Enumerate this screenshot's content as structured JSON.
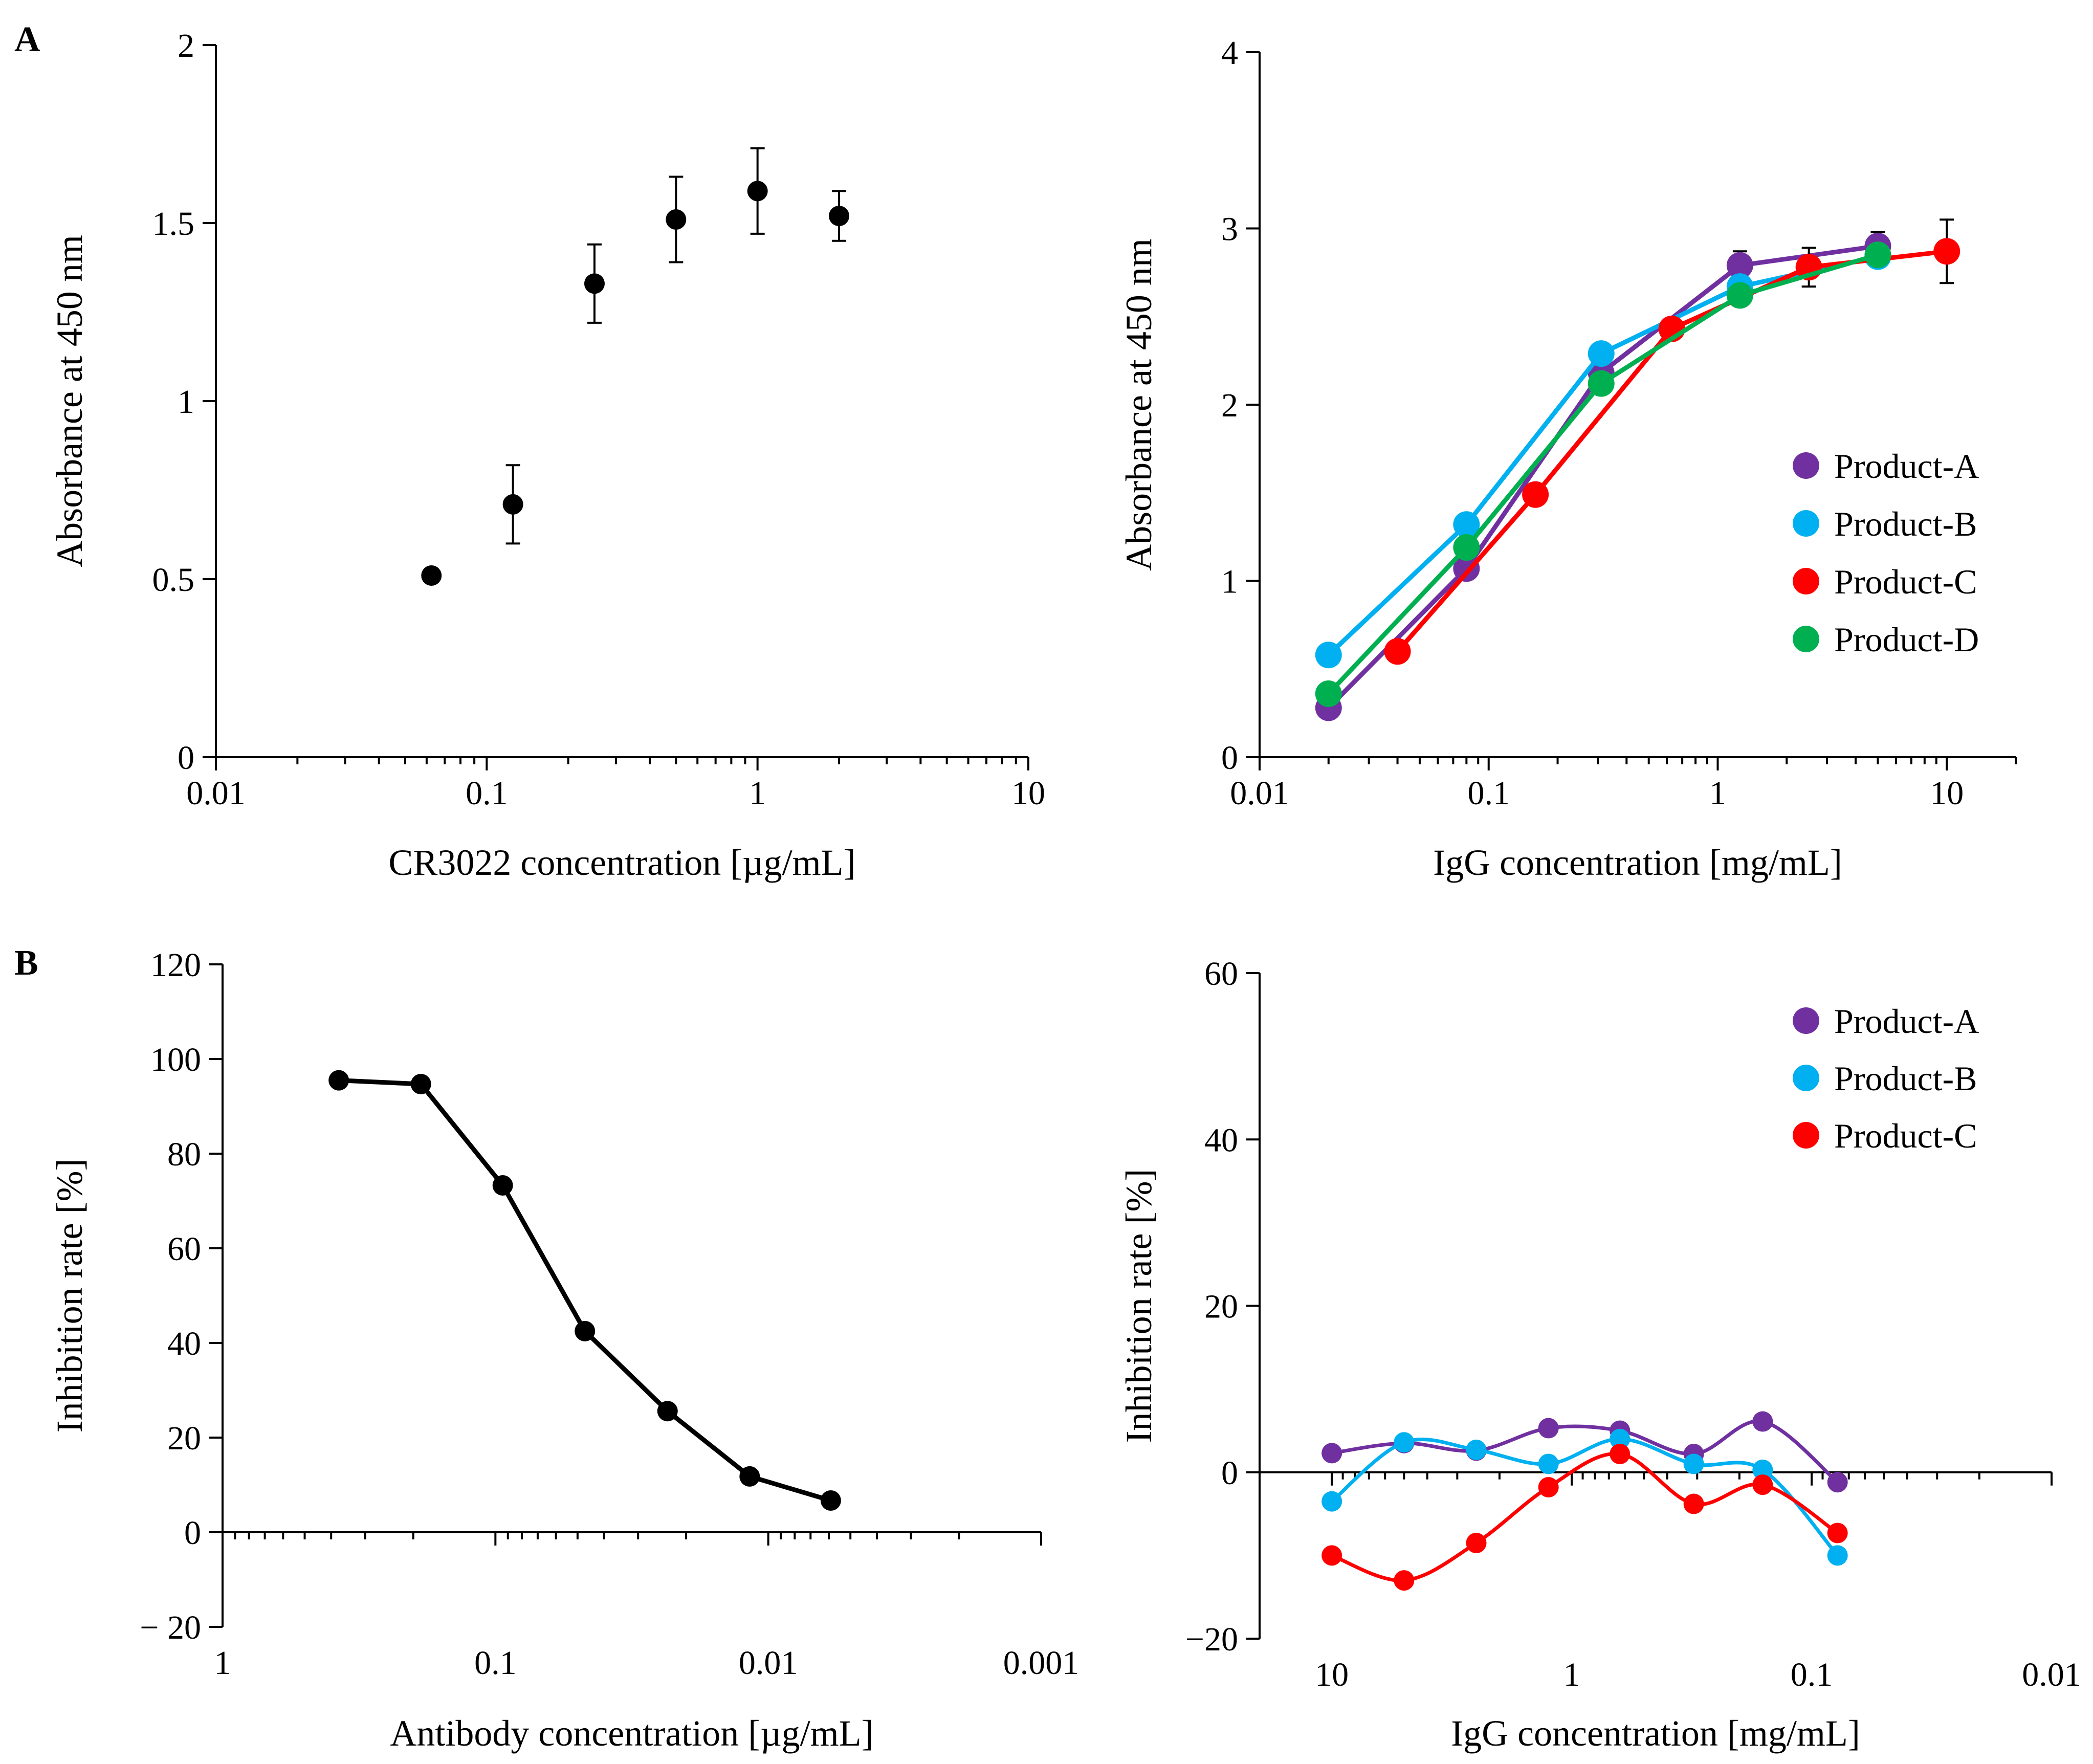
{
  "figure": {
    "panel_labels": [
      "A",
      "B"
    ]
  },
  "chart_data": [
    {
      "id": "A-left",
      "type": "scatter",
      "x_scale": "log",
      "xlabel": "CR3022 concentration [µg/mL]",
      "ylabel": "Absorbance at 450 nm",
      "xlim": [
        0.01,
        10
      ],
      "ylim": [
        0,
        2
      ],
      "x_ticks": [
        0.01,
        0.1,
        1,
        10
      ],
      "x_tick_labels": [
        "0.01",
        "0.1",
        "1",
        "10"
      ],
      "y_ticks": [
        0,
        0.5,
        1,
        1.5,
        2
      ],
      "y_tick_labels": [
        "0",
        "0.5",
        "1",
        "1.5",
        "2"
      ],
      "series": [
        {
          "name": "CR3022",
          "color": "#000000",
          "x": [
            0.0625,
            0.125,
            0.25,
            0.5,
            1,
            2
          ],
          "y": [
            0.51,
            0.71,
            1.33,
            1.51,
            1.59,
            1.52
          ],
          "err": [
            0,
            0.11,
            0.11,
            0.12,
            0.12,
            0.07
          ]
        }
      ]
    },
    {
      "id": "A-right",
      "type": "line",
      "x_scale": "log",
      "xlabel": "IgG concentration [mg/mL]",
      "ylabel": "Absorbance at 450 nm",
      "xlim": [
        0.01,
        20
      ],
      "ylim": [
        0,
        4
      ],
      "x_ticks": [
        0.01,
        0.1,
        1,
        10
      ],
      "x_tick_labels": [
        "0.01",
        "0.1",
        "1",
        "10"
      ],
      "y_ticks": [
        0,
        1,
        2,
        3,
        4
      ],
      "y_tick_labels": [
        "0",
        "1",
        "2",
        "3",
        "4"
      ],
      "legend": "right",
      "series": [
        {
          "name": "Product-A",
          "color": "#7030A0",
          "x": [
            0.02,
            0.08,
            0.31,
            1.25,
            5
          ],
          "y": [
            0.28,
            1.07,
            2.18,
            2.79,
            2.9
          ],
          "err": [
            0,
            0,
            0,
            0.08,
            0.08
          ]
        },
        {
          "name": "Product-B",
          "color": "#00B0F0",
          "x": [
            0.02,
            0.08,
            0.31,
            1.25,
            5
          ],
          "y": [
            0.58,
            1.32,
            2.29,
            2.67,
            2.84
          ],
          "err": [
            0,
            0,
            0,
            0,
            0
          ]
        },
        {
          "name": "Product-C",
          "color": "#FF0000",
          "x": [
            0.04,
            0.16,
            0.63,
            2.5,
            10
          ],
          "y": [
            0.6,
            1.49,
            2.43,
            2.78,
            2.87
          ],
          "err": [
            0,
            0,
            0,
            0.11,
            0.18
          ]
        },
        {
          "name": "Product-D",
          "color": "#00B050",
          "x": [
            0.02,
            0.08,
            0.31,
            1.25,
            5
          ],
          "y": [
            0.36,
            1.19,
            2.12,
            2.62,
            2.85
          ],
          "err": [
            0,
            0,
            0,
            0,
            0
          ]
        }
      ]
    },
    {
      "id": "B-left",
      "type": "line",
      "x_scale": "log",
      "x_reversed": true,
      "xlabel": "Antibody concentration [µg/mL]",
      "ylabel": "Inhibition rate [%]",
      "xlim": [
        1,
        0.001
      ],
      "ylim": [
        -20,
        120
      ],
      "x_ticks": [
        1,
        0.1,
        0.01,
        0.001
      ],
      "x_tick_labels": [
        "1",
        "0.1",
        "0.01",
        "0.001"
      ],
      "y_ticks": [
        -20,
        0,
        20,
        40,
        60,
        80,
        100,
        120
      ],
      "y_tick_labels": [
        "− 20",
        "0",
        "20",
        "40",
        "60",
        "80",
        "100",
        "120"
      ],
      "series": [
        {
          "name": "Antibody",
          "color": "#000000",
          "x": [
            0.375,
            0.1875,
            0.094,
            0.047,
            0.0234,
            0.0117,
            0.0059
          ],
          "y": [
            95.5,
            94.7,
            73.3,
            42.5,
            25.6,
            11.8,
            6.7
          ]
        }
      ]
    },
    {
      "id": "B-right",
      "type": "line",
      "x_scale": "log",
      "x_reversed": true,
      "xlabel": "IgG concentration [mg/mL]",
      "ylabel": "Inhibition rate [%]",
      "xlim": [
        20,
        0.01
      ],
      "ylim": [
        -20,
        60
      ],
      "x_ticks": [
        10,
        1,
        0.1,
        0.01
      ],
      "x_tick_labels": [
        "10",
        "1",
        "0.1",
        "0.01"
      ],
      "y_ticks": [
        -20,
        0,
        20,
        40,
        60
      ],
      "y_tick_labels": [
        "−20",
        "0",
        "20",
        "40",
        "60"
      ],
      "legend": "top-right",
      "series": [
        {
          "name": "Product-A",
          "color": "#7030A0",
          "x": [
            10,
            5,
            2.5,
            1.25,
            0.63,
            0.31,
            0.16,
            0.078
          ],
          "y": [
            2.3,
            3.5,
            2.6,
            5.3,
            5.0,
            2.2,
            6.1,
            -1.2
          ]
        },
        {
          "name": "Product-B",
          "color": "#00B0F0",
          "x": [
            10,
            5,
            2.5,
            1.25,
            0.63,
            0.31,
            0.16,
            0.078
          ],
          "y": [
            -3.5,
            3.6,
            2.7,
            1.0,
            4.0,
            1.0,
            0.3,
            -10.0
          ]
        },
        {
          "name": "Product-C",
          "color": "#FF0000",
          "x": [
            10,
            5,
            2.5,
            1.25,
            0.63,
            0.31,
            0.16,
            0.078
          ],
          "y": [
            -10.0,
            -13.0,
            -8.5,
            -1.8,
            2.2,
            -3.8,
            -1.5,
            -7.3
          ]
        }
      ]
    }
  ]
}
